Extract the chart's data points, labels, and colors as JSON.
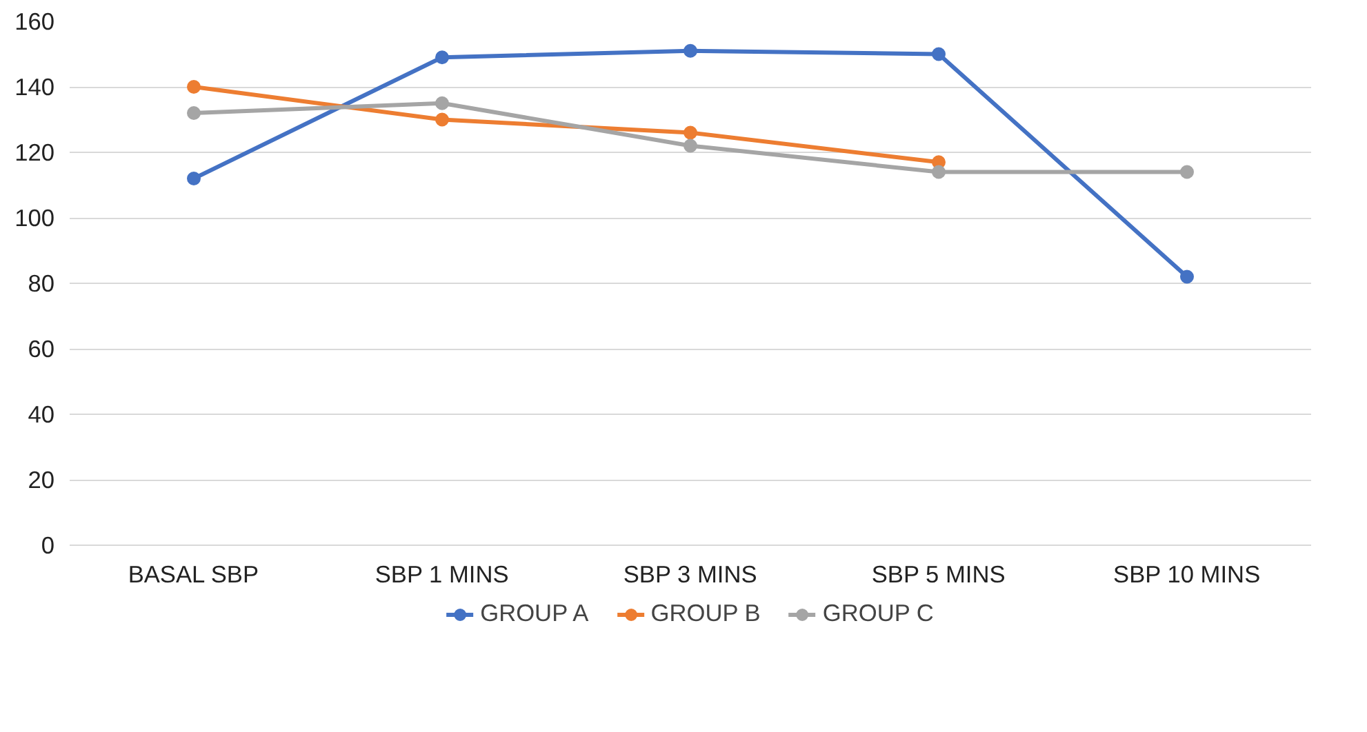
{
  "chart_data": {
    "type": "line",
    "categories": [
      "BASAL SBP",
      "SBP 1 MINS",
      "SBP 3 MINS",
      "SBP 5 MINS",
      "SBP 10 MINS"
    ],
    "series": [
      {
        "name": "GROUP A",
        "color": "#4472c4",
        "values": [
          112,
          149,
          151,
          150,
          82
        ]
      },
      {
        "name": "GROUP B",
        "color": "#ed7d31",
        "values": [
          140,
          130,
          126,
          117,
          null
        ]
      },
      {
        "name": "GROUP C",
        "color": "#a5a5a5",
        "values": [
          132,
          135,
          122,
          114,
          114
        ]
      }
    ],
    "ylim": [
      0,
      160
    ],
    "yticks": [
      0,
      20,
      40,
      60,
      80,
      100,
      120,
      140,
      160
    ],
    "grid": "y",
    "legend": "bottom",
    "marker": "circle",
    "line_style": "solid"
  }
}
